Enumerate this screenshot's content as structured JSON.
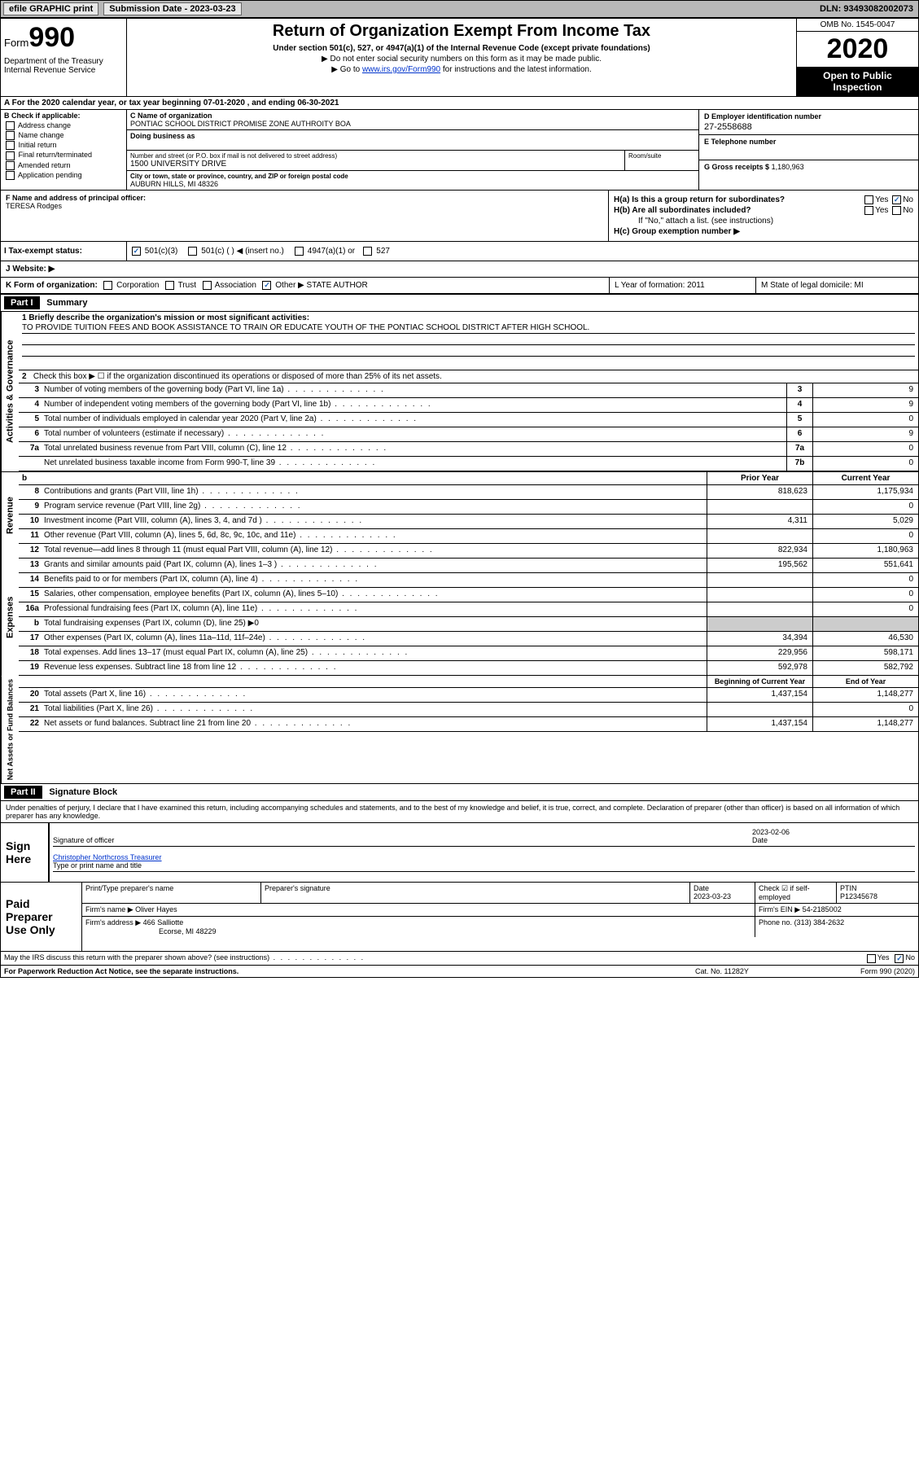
{
  "topbar": {
    "efile": "efile GRAPHIC print",
    "submission_label": "Submission Date - 2023-03-23",
    "dln": "DLN: 93493082002073"
  },
  "header": {
    "form_word": "Form",
    "form_num": "990",
    "dept": "Department of the Treasury\nInternal Revenue Service",
    "title": "Return of Organization Exempt From Income Tax",
    "subtitle": "Under section 501(c), 527, or 4947(a)(1) of the Internal Revenue Code (except private foundations)",
    "note1": "▶ Do not enter social security numbers on this form as it may be made public.",
    "note2_pre": "▶ Go to ",
    "note2_link": "www.irs.gov/Form990",
    "note2_post": " for instructions and the latest information.",
    "omb": "OMB No. 1545-0047",
    "year": "2020",
    "inspect": "Open to Public Inspection"
  },
  "row_a": "A For the 2020 calendar year, or tax year beginning 07-01-2020   , and ending 06-30-2021",
  "col_b": {
    "lbl": "B Check if applicable:",
    "items": [
      "Address change",
      "Name change",
      "Initial return",
      "Final return/terminated",
      "Amended return",
      "Application pending"
    ]
  },
  "col_c": {
    "name_lbl": "C Name of organization",
    "name": "PONTIAC SCHOOL DISTRICT PROMISE ZONE AUTHROITY BOA",
    "dba_lbl": "Doing business as",
    "street_lbl": "Number and street (or P.O. box if mail is not delivered to street address)",
    "room_lbl": "Room/suite",
    "street": "1500 UNIVERSITY DRIVE",
    "city_lbl": "City or town, state or province, country, and ZIP or foreign postal code",
    "city": "AUBURN HILLS, MI  48326"
  },
  "col_de": {
    "d_lbl": "D Employer identification number",
    "d_val": "27-2558688",
    "e_lbl": "E Telephone number",
    "g_lbl": "G Gross receipts $",
    "g_val": "1,180,963"
  },
  "col_f": {
    "lbl": "F  Name and address of principal officer:",
    "val": "TERESA Rodges"
  },
  "col_h": {
    "ha": "H(a)  Is this a group return for subordinates?",
    "hb": "H(b)  Are all subordinates included?",
    "hb_note": "If \"No,\" attach a list. (see instructions)",
    "hc": "H(c)  Group exemption number ▶",
    "yes": "Yes",
    "no": "No"
  },
  "tax": {
    "lbl": "I   Tax-exempt status:",
    "c3": "501(c)(3)",
    "c": "501(c) (  ) ◀ (insert no.)",
    "a1": "4947(a)(1) or",
    "s527": "527"
  },
  "web": {
    "lbl": "J   Website: ▶"
  },
  "klm": {
    "k_lbl": "K Form of organization:",
    "k_opts": [
      "Corporation",
      "Trust",
      "Association",
      "Other ▶"
    ],
    "k_other": "STATE AUTHOR",
    "l": "L Year of formation: 2011",
    "m": "M State of legal domicile: MI"
  },
  "part1": {
    "hdr": "Part I",
    "title": "Summary",
    "q1_lbl": "1   Briefly describe the organization's mission or most significant activities:",
    "q1_val": "TO PROVIDE TUITION FEES AND BOOK ASSISTANCE TO TRAIN OR EDUCATE YOUTH OF THE PONTIAC SCHOOL DISTRICT AFTER HIGH SCHOOL.",
    "q2": "Check this box ▶ ☐  if the organization discontinued its operations or disposed of more than 25% of its net assets.",
    "side_gov": "Activities & Governance",
    "side_rev": "Revenue",
    "side_exp": "Expenses",
    "side_net": "Net Assets or Fund Balances",
    "lines_gov": [
      {
        "n": "3",
        "d": "Number of voting members of the governing body (Part VI, line 1a)",
        "b": "3",
        "v": "9"
      },
      {
        "n": "4",
        "d": "Number of independent voting members of the governing body (Part VI, line 1b)",
        "b": "4",
        "v": "9"
      },
      {
        "n": "5",
        "d": "Total number of individuals employed in calendar year 2020 (Part V, line 2a)",
        "b": "5",
        "v": "0"
      },
      {
        "n": "6",
        "d": "Total number of volunteers (estimate if necessary)",
        "b": "6",
        "v": "9"
      },
      {
        "n": "7a",
        "d": "Total unrelated business revenue from Part VIII, column (C), line 12",
        "b": "7a",
        "v": "0"
      },
      {
        "n": "",
        "d": "Net unrelated business taxable income from Form 990-T, line 39",
        "b": "7b",
        "v": "0"
      }
    ],
    "hdr_prior": "Prior Year",
    "hdr_curr": "Current Year",
    "lines_rev": [
      {
        "n": "8",
        "d": "Contributions and grants (Part VIII, line 1h)",
        "p": "818,623",
        "c": "1,175,934"
      },
      {
        "n": "9",
        "d": "Program service revenue (Part VIII, line 2g)",
        "p": "",
        "c": "0"
      },
      {
        "n": "10",
        "d": "Investment income (Part VIII, column (A), lines 3, 4, and 7d )",
        "p": "4,311",
        "c": "5,029"
      },
      {
        "n": "11",
        "d": "Other revenue (Part VIII, column (A), lines 5, 6d, 8c, 9c, 10c, and 11e)",
        "p": "",
        "c": "0"
      },
      {
        "n": "12",
        "d": "Total revenue—add lines 8 through 11 (must equal Part VIII, column (A), line 12)",
        "p": "822,934",
        "c": "1,180,963"
      }
    ],
    "lines_exp": [
      {
        "n": "13",
        "d": "Grants and similar amounts paid (Part IX, column (A), lines 1–3 )",
        "p": "195,562",
        "c": "551,641"
      },
      {
        "n": "14",
        "d": "Benefits paid to or for members (Part IX, column (A), line 4)",
        "p": "",
        "c": "0"
      },
      {
        "n": "15",
        "d": "Salaries, other compensation, employee benefits (Part IX, column (A), lines 5–10)",
        "p": "",
        "c": "0"
      },
      {
        "n": "16a",
        "d": "Professional fundraising fees (Part IX, column (A), line 11e)",
        "p": "",
        "c": "0"
      },
      {
        "n": "b",
        "d": "Total fundraising expenses (Part IX, column (D), line 25) ▶0",
        "p": "SHADE",
        "c": "SHADE"
      },
      {
        "n": "17",
        "d": "Other expenses (Part IX, column (A), lines 11a–11d, 11f–24e)",
        "p": "34,394",
        "c": "46,530"
      },
      {
        "n": "18",
        "d": "Total expenses. Add lines 13–17 (must equal Part IX, column (A), line 25)",
        "p": "229,956",
        "c": "598,171"
      },
      {
        "n": "19",
        "d": "Revenue less expenses. Subtract line 18 from line 12",
        "p": "592,978",
        "c": "582,792"
      }
    ],
    "hdr_beg": "Beginning of Current Year",
    "hdr_end": "End of Year",
    "lines_net": [
      {
        "n": "20",
        "d": "Total assets (Part X, line 16)",
        "p": "1,437,154",
        "c": "1,148,277"
      },
      {
        "n": "21",
        "d": "Total liabilities (Part X, line 26)",
        "p": "",
        "c": "0"
      },
      {
        "n": "22",
        "d": "Net assets or fund balances. Subtract line 21 from line 20",
        "p": "1,437,154",
        "c": "1,148,277"
      }
    ]
  },
  "part2": {
    "hdr": "Part II",
    "title": "Signature Block",
    "decl": "Under penalties of perjury, I declare that I have examined this return, including accompanying schedules and statements, and to the best of my knowledge and belief, it is true, correct, and complete. Declaration of preparer (other than officer) is based on all information of which preparer has any knowledge."
  },
  "sign": {
    "lbl": "Sign Here",
    "sig_officer": "Signature of officer",
    "date_lbl": "Date",
    "date_val": "2023-02-06",
    "name": "Christopher Northcross Treasurer",
    "name_lbl": "Type or print name and title"
  },
  "paid": {
    "lbl": "Paid Preparer Use Only",
    "h_name": "Print/Type preparer's name",
    "h_sig": "Preparer's signature",
    "h_date": "Date",
    "date_val": "2023-03-23",
    "h_check": "Check ☑ if self-employed",
    "h_ptin": "PTIN",
    "ptin_val": "P12345678",
    "firm_name_lbl": "Firm's name    ▶",
    "firm_name": "Oliver Hayes",
    "firm_ein_lbl": "Firm's EIN ▶",
    "firm_ein": "54-2185002",
    "firm_addr_lbl": "Firm's address ▶",
    "firm_addr1": "466 Salliotte",
    "firm_addr2": "Ecorse, MI  48229",
    "phone_lbl": "Phone no.",
    "phone": "(313) 384-2632"
  },
  "footer": {
    "discuss": "May the IRS discuss this return with the preparer shown above? (see instructions)",
    "yes": "Yes",
    "no": "No",
    "pra": "For Paperwork Reduction Act Notice, see the separate instructions.",
    "cat": "Cat. No. 11282Y",
    "form": "Form 990 (2020)"
  }
}
